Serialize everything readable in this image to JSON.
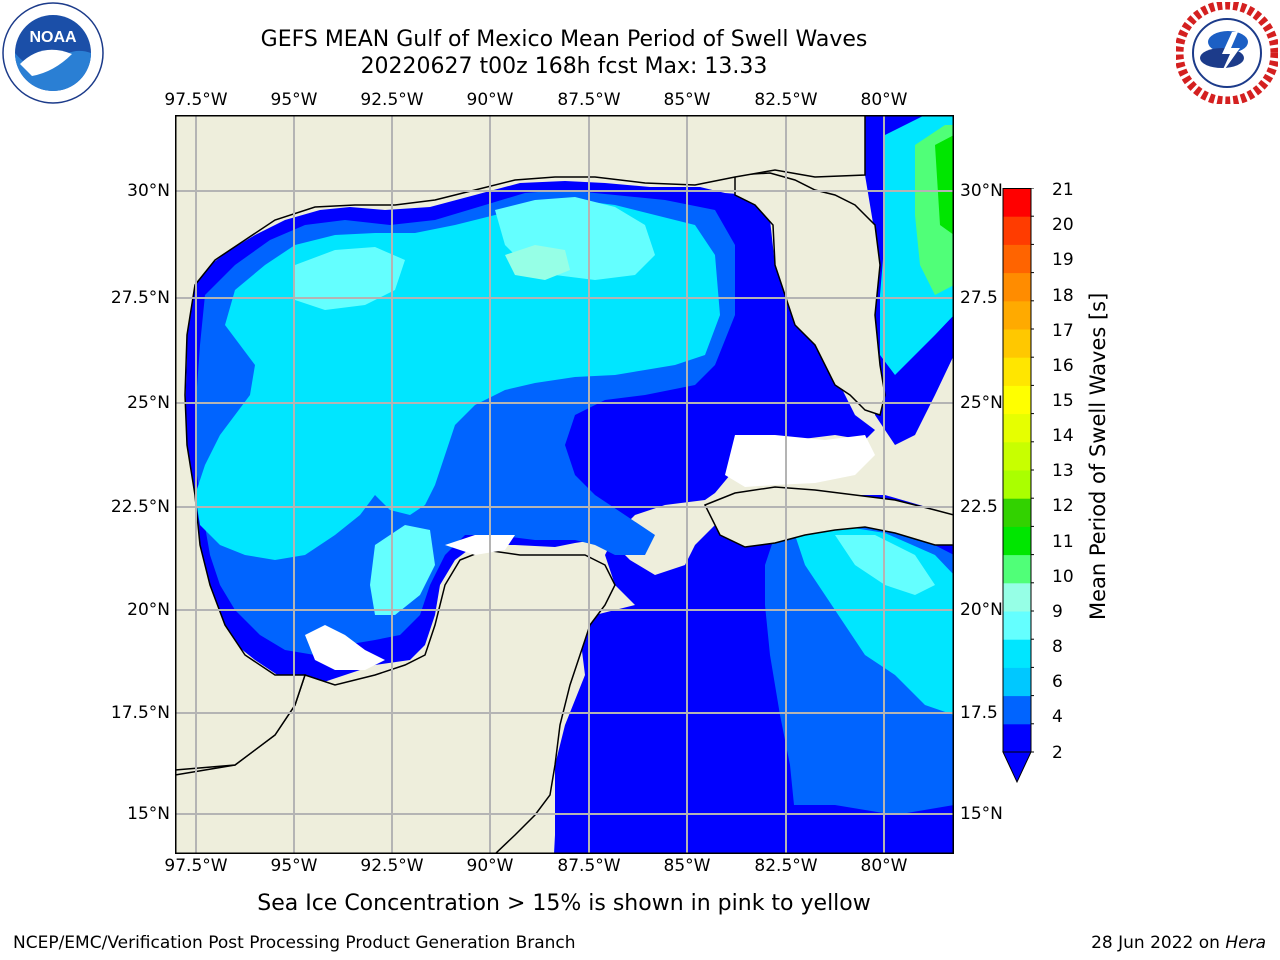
{
  "title": {
    "line1": "GEFS MEAN Gulf of Mexico Mean Period of Swell Waves",
    "line2": "20220627 t00z 168h fcst   Max: 13.33"
  },
  "logos": {
    "left": {
      "icon": "noaa-logo",
      "text": "NOAA",
      "ring_text": "NATIONAL OCEANIC AND ATMOSPHERIC ADMINISTRATION · U.S. DEPARTMENT OF COMMERCE"
    },
    "right": {
      "icon": "nws-logo",
      "ring_text": "NATIONAL WEATHER SERVICE"
    }
  },
  "map": {
    "longitude_labels": [
      "97.5°W",
      "95°W",
      "92.5°W",
      "90°W",
      "87.5°W",
      "85°W",
      "82.5°W",
      "80°W"
    ],
    "latitude_labels_left": [
      "30°N",
      "27.5°N",
      "25°N",
      "22.5°N",
      "20°N",
      "17.5°N",
      "15°N"
    ],
    "latitude_labels_right": [
      "30°N",
      "27.5",
      "25°N",
      "22.5",
      "20°N",
      "17.5",
      "15°N"
    ],
    "land_color": "#eeeedc",
    "grid_color": "#b4b4b4"
  },
  "colorbar": {
    "label": "Mean Period of Swell Waves [s]",
    "ticks": [
      "21",
      "20",
      "19",
      "18",
      "17",
      "16",
      "15",
      "14",
      "13",
      "12",
      "11",
      "10",
      "9",
      "8",
      "6",
      "4",
      "2"
    ],
    "colors": [
      "#0000ff",
      "#0064ff",
      "#00c8ff",
      "#00e6ff",
      "#64ffff",
      "#96ffe6",
      "#50ff78",
      "#00e600",
      "#32d200",
      "#aaff00",
      "#c8ff00",
      "#e6ff00",
      "#ffff00",
      "#ffe600",
      "#ffc800",
      "#ffaa00",
      "#ff8c00",
      "#ff6400",
      "#ff3c00",
      "#ff0000"
    ]
  },
  "caption": "Sea Ice Concentration > 15% is shown in pink to yellow",
  "footer": {
    "left": "NCEP/EMC/Verification Post Processing Product Generation Branch",
    "date": "28 Jun 2022 on ",
    "machine": "Hera"
  }
}
